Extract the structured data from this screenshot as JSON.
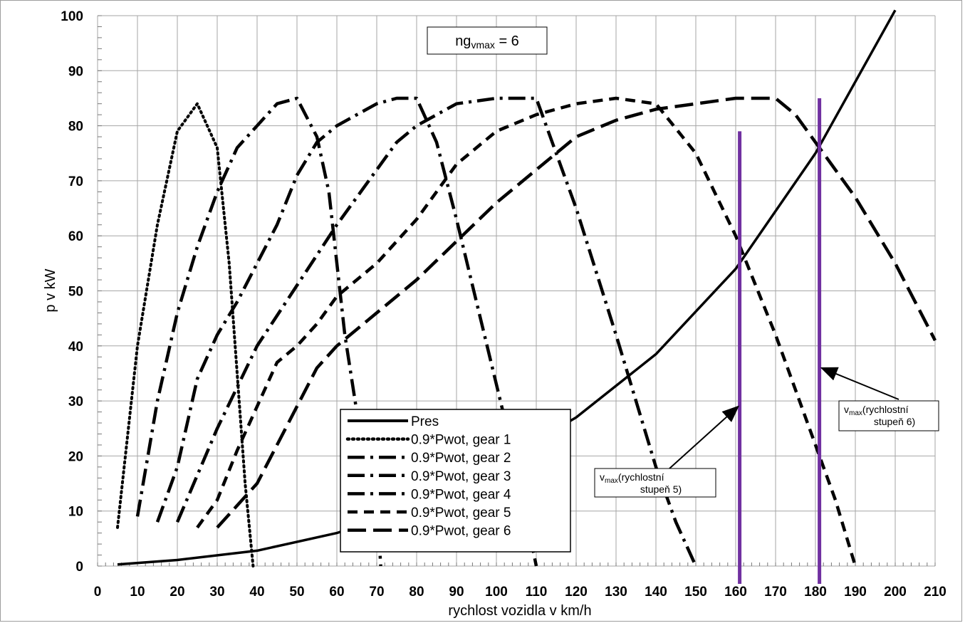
{
  "chart_data": {
    "type": "line",
    "title": "",
    "xlabel": "rychlost vozidla v km/h",
    "ylabel": "p  v  kW",
    "xlim": [
      0,
      210
    ],
    "ylim": [
      0,
      100
    ],
    "x_ticks": [
      0,
      10,
      20,
      30,
      40,
      50,
      60,
      70,
      80,
      90,
      100,
      110,
      120,
      130,
      140,
      150,
      160,
      170,
      180,
      190,
      200,
      210
    ],
    "y_ticks": [
      0,
      10,
      20,
      30,
      40,
      50,
      60,
      70,
      80,
      90,
      100
    ],
    "grid": true,
    "legend_position": "bottom-center",
    "note": {
      "base": "ng",
      "sub": "vmax",
      "rest": " = 6"
    },
    "series": [
      {
        "name": "Pres",
        "style": "solid",
        "x": [
          5,
          20,
          40,
          60,
          80,
          100,
          120,
          140,
          160,
          180,
          200
        ],
        "y": [
          0.3,
          1.1,
          2.8,
          6.0,
          11.0,
          18.5,
          27.0,
          38.5,
          54.0,
          75.0,
          101.0
        ]
      },
      {
        "name": "0.9*Pwot,  gear  1",
        "style": "dot",
        "x": [
          5,
          10,
          15,
          20,
          25,
          30,
          33,
          35,
          37,
          39
        ],
        "y": [
          7,
          40,
          62,
          79,
          84,
          76,
          55,
          35,
          15,
          0
        ]
      },
      {
        "name": "0.9*Pwot,  gear  2",
        "style": "dashdot",
        "x": [
          10,
          15,
          20,
          25,
          30,
          35,
          40,
          45,
          50,
          55,
          58,
          62,
          65,
          70,
          71
        ],
        "y": [
          9,
          30,
          46,
          58,
          68,
          76,
          80,
          84,
          85,
          78,
          68,
          42,
          28,
          12,
          0
        ]
      },
      {
        "name": "0.9*Pwot,  gear  3",
        "style": "dashdot",
        "x": [
          15,
          20,
          25,
          30,
          35,
          40,
          45,
          50,
          55,
          60,
          65,
          70,
          75,
          80,
          85,
          90,
          95,
          100,
          105,
          110
        ],
        "y": [
          8,
          18,
          34,
          42,
          48,
          55,
          62,
          71,
          77,
          80,
          82,
          84,
          85,
          85,
          77,
          63,
          48,
          33,
          18,
          0
        ]
      },
      {
        "name": "0.9*Pwot,  gear  4",
        "style": "dashdot",
        "x": [
          20,
          30,
          40,
          50,
          60,
          70,
          75,
          80,
          90,
          100,
          105,
          110,
          115,
          120,
          130,
          140,
          145,
          150
        ],
        "y": [
          8,
          25,
          40,
          51,
          62,
          72,
          77,
          80,
          84,
          85,
          85,
          85,
          75,
          65,
          42,
          18,
          8,
          0
        ]
      },
      {
        "name": "0.9*Pwot,  gear  5",
        "style": "dash",
        "x": [
          25,
          30,
          35,
          40,
          45,
          50,
          55,
          60,
          70,
          80,
          90,
          100,
          110,
          120,
          130,
          140,
          150,
          160,
          170,
          180,
          185,
          190
        ],
        "y": [
          7,
          12,
          21,
          29,
          37,
          40,
          44,
          49,
          55,
          63,
          73,
          79,
          82,
          84,
          85,
          84,
          75,
          60,
          42,
          22,
          12,
          0
        ]
      },
      {
        "name": "0.9*Pwot,  gear  6",
        "style": "longdash",
        "x": [
          30,
          40,
          50,
          55,
          60,
          70,
          80,
          90,
          100,
          110,
          120,
          130,
          140,
          150,
          160,
          170,
          175,
          180,
          190,
          200,
          210
        ],
        "y": [
          7,
          15,
          29,
          36,
          40,
          46,
          52,
          59,
          66,
          72,
          78,
          81,
          83,
          84,
          85,
          85,
          82,
          77,
          67,
          55,
          41
        ]
      }
    ],
    "vmax_lines": [
      {
        "x": 161,
        "y_top": 79,
        "label_main": "v",
        "label_sub": "max",
        "label_rest": "(rychlostní",
        "label_line2": "stupeň 5)"
      },
      {
        "x": 181,
        "y_top": 85,
        "label_main": "v",
        "label_sub": "max",
        "label_rest": "(rychlostní",
        "label_line2": "stupeň 6)"
      }
    ],
    "colors": {
      "series": "#000000",
      "vmax_line": "#7030a0",
      "grid": "#a6a6a6"
    }
  }
}
